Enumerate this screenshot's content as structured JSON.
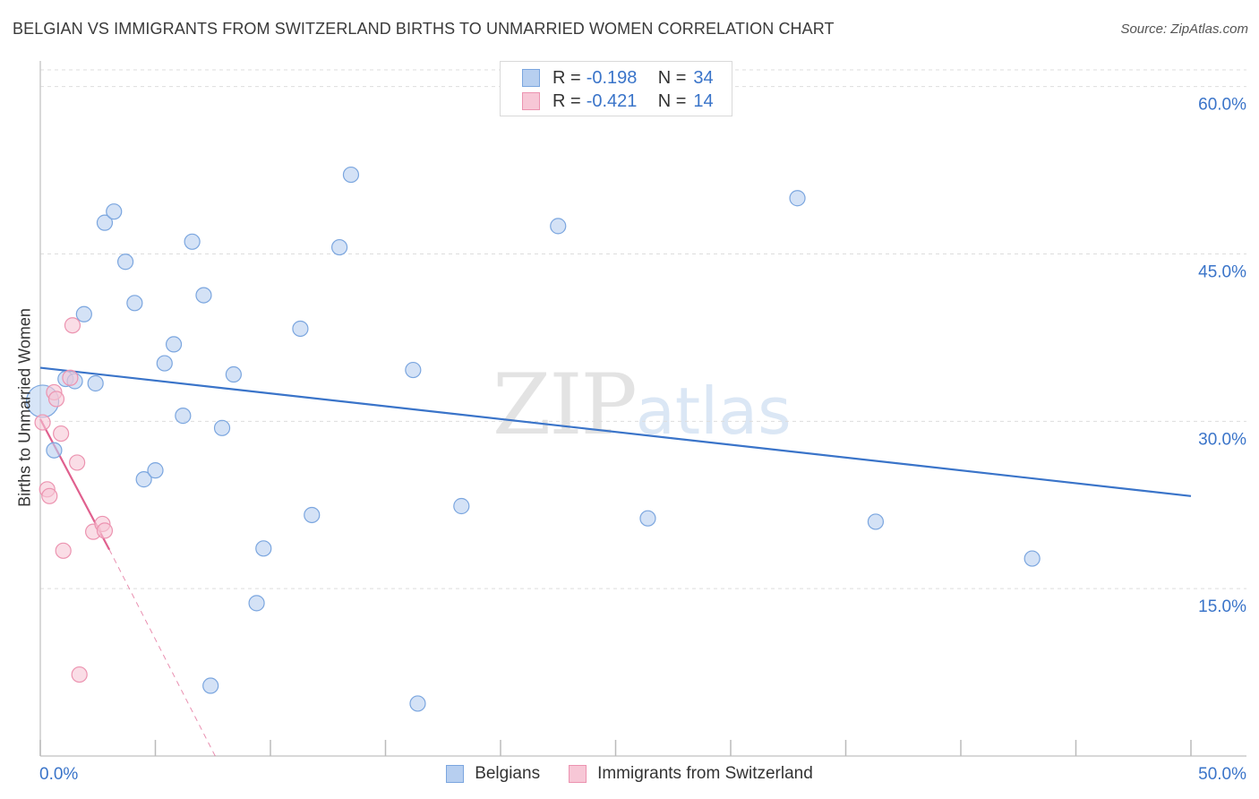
{
  "title": "BELGIAN VS IMMIGRANTS FROM SWITZERLAND BIRTHS TO UNMARRIED WOMEN CORRELATION CHART",
  "source": "Source: ZipAtlas.com",
  "watermark": {
    "zip": "ZIP",
    "atlas": "atlas"
  },
  "colors": {
    "blue_fill": "#b7cff0",
    "blue_stroke": "#7ba6df",
    "blue_line": "#3a74c9",
    "pink_fill": "#f7c7d6",
    "pink_stroke": "#ec93b0",
    "pink_line": "#e0608e",
    "tick_label": "#3a74c9",
    "grid": "#dddddd"
  },
  "legend": {
    "rows": [
      {
        "r_label": "R =",
        "r_value": "-0.198",
        "n_label": "N =",
        "n_value": "34"
      },
      {
        "r_label": "R =",
        "r_value": "-0.421",
        "n_label": "N =",
        "n_value": "14"
      }
    ]
  },
  "chart_data": {
    "type": "scatter",
    "xlabel": "",
    "ylabel": "Births to Unmarried Women",
    "xlim": [
      0,
      50
    ],
    "ylim": [
      0,
      61.5
    ],
    "x_tick_labels": [
      "0.0%",
      "50.0%"
    ],
    "y_ticks": [
      15,
      30,
      45,
      60
    ],
    "y_tick_labels": [
      "15.0%",
      "30.0%",
      "45.0%",
      "60.0%"
    ],
    "series": [
      {
        "name": "Belgians",
        "points": [
          [
            0.1,
            31.8
          ],
          [
            0.6,
            27.4
          ],
          [
            1.1,
            33.8
          ],
          [
            1.5,
            33.6
          ],
          [
            1.9,
            39.6
          ],
          [
            2.4,
            33.4
          ],
          [
            2.8,
            47.8
          ],
          [
            3.2,
            48.8
          ],
          [
            3.7,
            44.3
          ],
          [
            4.1,
            40.6
          ],
          [
            4.5,
            24.8
          ],
          [
            5.0,
            25.6
          ],
          [
            5.4,
            35.2
          ],
          [
            5.8,
            36.9
          ],
          [
            6.2,
            30.5
          ],
          [
            6.6,
            46.1
          ],
          [
            7.1,
            41.3
          ],
          [
            7.4,
            6.3
          ],
          [
            7.9,
            29.4
          ],
          [
            8.4,
            34.2
          ],
          [
            9.4,
            13.7
          ],
          [
            9.7,
            18.6
          ],
          [
            11.3,
            38.3
          ],
          [
            11.8,
            21.6
          ],
          [
            13.0,
            45.6
          ],
          [
            13.5,
            52.1
          ],
          [
            16.2,
            34.6
          ],
          [
            16.4,
            4.7
          ],
          [
            18.3,
            22.4
          ],
          [
            22.5,
            47.5
          ],
          [
            26.4,
            21.3
          ],
          [
            32.9,
            50.0
          ],
          [
            36.3,
            21.0
          ],
          [
            43.1,
            17.7
          ]
        ],
        "trend": {
          "x": [
            0,
            50
          ],
          "y": [
            34.8,
            23.3
          ]
        }
      },
      {
        "name": "Immigrants from Switzerland",
        "points": [
          [
            0.1,
            29.9
          ],
          [
            0.3,
            23.9
          ],
          [
            0.4,
            23.3
          ],
          [
            0.6,
            32.6
          ],
          [
            0.7,
            32.0
          ],
          [
            0.9,
            28.9
          ],
          [
            1.0,
            18.4
          ],
          [
            1.3,
            33.9
          ],
          [
            1.4,
            38.6
          ],
          [
            1.6,
            26.3
          ],
          [
            1.7,
            7.3
          ],
          [
            2.3,
            20.1
          ],
          [
            2.7,
            20.8
          ],
          [
            2.8,
            20.2
          ]
        ],
        "trend": {
          "x": [
            0,
            3.0
          ],
          "y": [
            30.2,
            18.5
          ]
        },
        "trend_dashed": {
          "x": [
            3.0,
            7.6
          ],
          "y": [
            18.5,
            0
          ]
        }
      }
    ]
  }
}
